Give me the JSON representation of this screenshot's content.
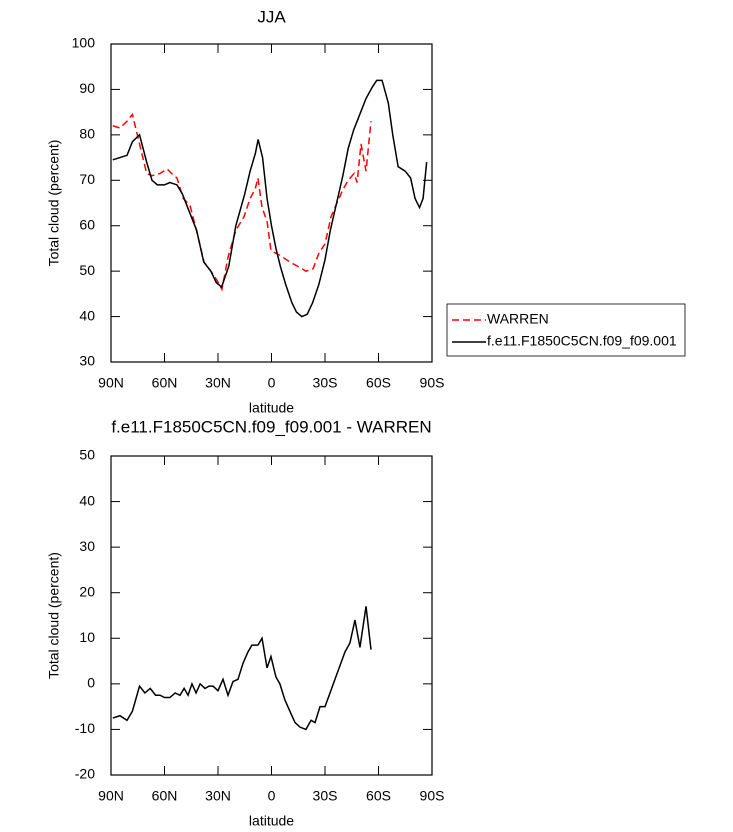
{
  "chart_data": [
    {
      "type": "line",
      "title": "JJA",
      "xlabel": "latitude",
      "ylabel": "Total cloud (percent)",
      "xlim": [
        90,
        -90
      ],
      "xticks": [
        {
          "value": 90,
          "label": "90N"
        },
        {
          "value": 60,
          "label": "60N"
        },
        {
          "value": 30,
          "label": "30N"
        },
        0,
        {
          "value": -30,
          "label": "30S"
        },
        {
          "value": -60,
          "label": "60S"
        },
        {
          "value": -90,
          "label": "90S"
        }
      ],
      "ylim": [
        30,
        100
      ],
      "yticks": [
        30,
        40,
        50,
        60,
        70,
        80,
        90,
        100
      ],
      "legend": true,
      "series": [
        {
          "name": "WARREN",
          "color": "#ff0000",
          "dash": true,
          "x": [
            89,
            85,
            81,
            78,
            74,
            70,
            67,
            62.5,
            58.5,
            56,
            53,
            49.5,
            45.7,
            41.8,
            37.8,
            34,
            30.6,
            27.8,
            24.4,
            20,
            15.4,
            12,
            9.2,
            7.6,
            5.3,
            2.5,
            0.3,
            -4.7,
            -10.3,
            -15,
            -19.3,
            -23.3,
            -26.6,
            -30,
            -33.4,
            -36.7,
            -40.1,
            -43,
            -46.3,
            -48,
            -50.2,
            -53,
            -55.8
          ],
          "values": [
            82,
            81.5,
            83,
            84.5,
            78,
            71.5,
            71,
            71.5,
            72.5,
            71.5,
            70.5,
            66,
            64.5,
            58.5,
            52,
            50,
            48,
            46,
            53,
            59,
            62,
            66,
            68,
            70.5,
            64,
            61,
            54.5,
            53.5,
            52,
            51,
            50,
            50.5,
            54,
            56,
            62,
            65,
            68,
            70,
            71.5,
            69.5,
            78,
            72,
            83
          ]
        },
        {
          "name": "f.e11.F1850C5CN.f09_f09.001",
          "color": "#000000",
          "dash": false,
          "x": [
            89,
            85,
            81,
            78,
            74,
            70,
            67,
            64,
            60,
            57,
            53,
            50,
            46,
            42,
            38,
            34,
            31,
            28,
            24,
            20,
            15,
            12,
            9,
            7.5,
            5,
            2.5,
            0,
            -2.5,
            -5,
            -8,
            -11.5,
            -14,
            -17,
            -20,
            -23,
            -26.5,
            -30,
            -33,
            -36.5,
            -40,
            -43,
            -46,
            -49.5,
            -53,
            -56.5,
            -59,
            -62,
            -65.5,
            -68,
            -71,
            -75,
            -78,
            -80.5,
            -83,
            -85,
            -87
          ],
          "values": [
            74.5,
            75,
            75.5,
            78.5,
            80,
            74,
            70,
            69,
            69,
            69.5,
            69,
            67,
            63,
            59,
            52,
            50,
            47.5,
            46.5,
            51,
            60,
            67,
            72,
            76,
            79,
            75,
            66,
            60,
            55,
            51,
            47,
            43,
            41,
            40,
            40.5,
            43,
            47,
            52.5,
            59,
            65,
            71,
            77,
            81,
            84.5,
            88,
            90.5,
            92,
            92,
            87,
            80,
            73,
            72,
            70.5,
            66,
            64,
            66,
            74
          ]
        }
      ]
    },
    {
      "type": "line",
      "title": "f.e11.F1850C5CN.f09_f09.001 - WARREN",
      "xlabel": "latitude",
      "ylabel": "Total cloud (percent)",
      "xlim": [
        90,
        -90
      ],
      "xticks": [
        {
          "value": 90,
          "label": "90N"
        },
        {
          "value": 60,
          "label": "60N"
        },
        {
          "value": 30,
          "label": "30N"
        },
        0,
        {
          "value": -30,
          "label": "30S"
        },
        {
          "value": -60,
          "label": "60S"
        },
        {
          "value": -90,
          "label": "90S"
        }
      ],
      "ylim": [
        -20,
        50
      ],
      "yticks": [
        -20,
        -10,
        0,
        10,
        20,
        30,
        40,
        50
      ],
      "legend": false,
      "series": [
        {
          "color": "#000000",
          "dash": false,
          "x": [
            89,
            85,
            81,
            78,
            74,
            71,
            68,
            65,
            62.5,
            60,
            57,
            54,
            51.3,
            49,
            46.8,
            44.6,
            42.3,
            40,
            37.3,
            35,
            32.8,
            30,
            27.2,
            24.4,
            21.6,
            18.8,
            16,
            13.2,
            11,
            7.6,
            5.3,
            2.5,
            0.3,
            -2.5,
            -4.7,
            -7.5,
            -10.3,
            -13.2,
            -16,
            -19.3,
            -22.2,
            -24.4,
            -27.2,
            -30,
            -32.8,
            -35.6,
            -38.4,
            -41.2,
            -44,
            -46.8,
            -49.6,
            -53,
            -55.8
          ],
          "values": [
            -7.5,
            -7,
            -8,
            -6,
            -0.5,
            -2,
            -1,
            -2.5,
            -2.5,
            -3,
            -3,
            -2,
            -2.5,
            -1,
            -2.5,
            0,
            -2,
            0,
            -1,
            -0.5,
            -0.5,
            -1.5,
            1,
            -2.5,
            0.5,
            1,
            4.5,
            7,
            8.5,
            8.5,
            10,
            3.5,
            6,
            1.5,
            0,
            -3.5,
            -6,
            -8.5,
            -9.5,
            -10,
            -8,
            -8.5,
            -5,
            -5,
            -2,
            1,
            4,
            7,
            9,
            14,
            8,
            17,
            7.5
          ]
        }
      ]
    }
  ]
}
